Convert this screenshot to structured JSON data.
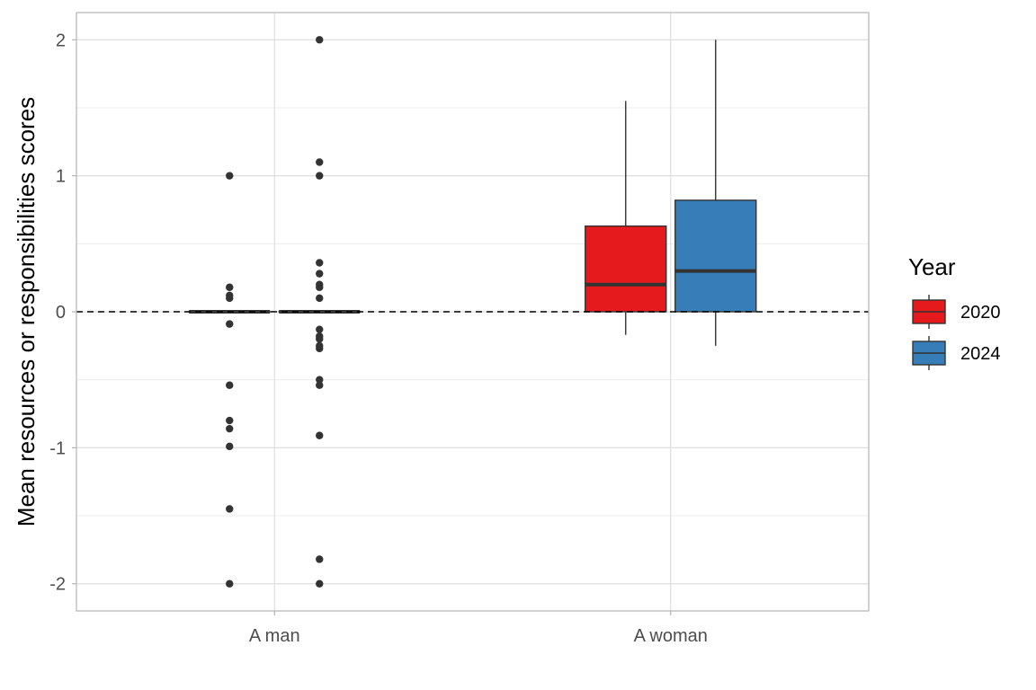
{
  "chart_data": {
    "type": "boxplot",
    "ylabel": "Mean resources or responsibilities scores",
    "xlabel": "",
    "categories": [
      "A man",
      "A woman"
    ],
    "ylim": [
      -2.2,
      2.2
    ],
    "yticks": [
      -2,
      -1,
      0,
      1,
      2
    ],
    "ytick_labels": [
      "-2",
      "-1",
      "0",
      "1",
      "2"
    ],
    "reference_line": {
      "y": 0,
      "style": "dashed"
    },
    "grid": true,
    "legend": {
      "title": "Year",
      "position": "right",
      "entries": [
        {
          "label": "2020",
          "color": "#E41A1C"
        },
        {
          "label": "2024",
          "color": "#377EB8"
        }
      ]
    },
    "series": [
      {
        "name": "2020",
        "color": "#E41A1C",
        "boxes": [
          {
            "category": "A man",
            "min": 0,
            "q1": 0,
            "median": 0,
            "q3": 0,
            "max": 0,
            "outliers": [
              1.0,
              0.18,
              0.12,
              0.1,
              -0.09,
              -0.54,
              -0.8,
              -0.86,
              -0.99,
              -1.45,
              -2.0
            ]
          },
          {
            "category": "A woman",
            "min": -0.17,
            "q1": 0,
            "median": 0.2,
            "q3": 0.63,
            "max": 1.55,
            "outliers": []
          }
        ]
      },
      {
        "name": "2024",
        "color": "#377EB8",
        "boxes": [
          {
            "category": "A man",
            "min": 0,
            "q1": 0,
            "median": 0,
            "q3": 0,
            "max": 0,
            "outliers": [
              2.0,
              1.1,
              1.0,
              0.36,
              0.28,
              0.2,
              0.18,
              0.1,
              -0.13,
              -0.18,
              -0.2,
              -0.25,
              -0.27,
              -0.5,
              -0.54,
              -0.91,
              -1.82,
              -2.0
            ]
          },
          {
            "category": "A woman",
            "min": -0.25,
            "q1": 0,
            "median": 0.3,
            "q3": 0.82,
            "max": 2.0,
            "outliers": []
          }
        ]
      }
    ]
  }
}
